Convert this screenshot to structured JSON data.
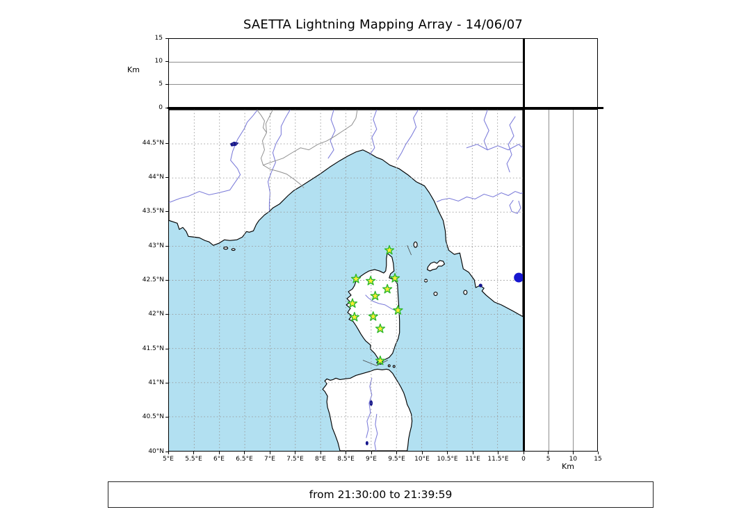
{
  "title": "SAETTA Lightning Mapping Array - 14/06/07",
  "footer": {
    "text": "from 21:30:00 to 21:39:59"
  },
  "axes": {
    "km_label_left": "Km",
    "km_label_bottom": "Km",
    "alt_ticks": [
      {
        "v": 0,
        "label": "0"
      },
      {
        "v": 5,
        "label": "5"
      },
      {
        "v": 10,
        "label": "10"
      },
      {
        "v": 15,
        "label": "15"
      }
    ],
    "lat_ticks": [
      {
        "v": 44.5,
        "label": "44.5°N"
      },
      {
        "v": 44,
        "label": "44°N"
      },
      {
        "v": 43.5,
        "label": "43.5°N"
      },
      {
        "v": 43,
        "label": "43°N"
      },
      {
        "v": 42.5,
        "label": "42.5°N"
      },
      {
        "v": 42,
        "label": "42°N"
      },
      {
        "v": 41.5,
        "label": "41.5°N"
      },
      {
        "v": 41,
        "label": "41°N"
      },
      {
        "v": 40.5,
        "label": "40.5°N"
      },
      {
        "v": 40,
        "label": "40°N"
      }
    ],
    "lon_ticks": [
      {
        "v": 5,
        "label": "5°E"
      },
      {
        "v": 5.5,
        "label": "5.5°E"
      },
      {
        "v": 6,
        "label": "6°E"
      },
      {
        "v": 6.5,
        "label": "6.5°E"
      },
      {
        "v": 7,
        "label": "7°E"
      },
      {
        "v": 7.5,
        "label": "7.5°E"
      },
      {
        "v": 8,
        "label": "8°E"
      },
      {
        "v": 8.5,
        "label": "8.5°E"
      },
      {
        "v": 9,
        "label": "9°E"
      },
      {
        "v": 9.5,
        "label": "9.5°E"
      },
      {
        "v": 10,
        "label": "10°E"
      },
      {
        "v": 10.5,
        "label": "10.5°E"
      },
      {
        "v": 11,
        "label": "11°E"
      },
      {
        "v": 11.5,
        "label": "11.5°E"
      }
    ]
  },
  "chart_data": {
    "type": "scatter",
    "title": "SAETTA Lightning Mapping Array - 14/06/07",
    "time_window": "from 21:30:00 to 21:39:59",
    "panels": [
      {
        "id": "altitude-vs-longitude",
        "position": "top",
        "xlim_deg_e": [
          5,
          12
        ],
        "ylim_km": [
          0,
          15
        ],
        "yticks_km": [
          0,
          5,
          10,
          15
        ],
        "ylabel": "Km",
        "gridlines_km": [
          5,
          10
        ],
        "points": []
      },
      {
        "id": "map",
        "position": "center",
        "lon_range_deg_e": [
          5,
          12
        ],
        "lat_range_deg_n": [
          40,
          45
        ],
        "grid": true,
        "grid_step_deg": 0.5
      },
      {
        "id": "latitude-vs-altitude",
        "position": "right",
        "xlim_km": [
          0,
          15
        ],
        "xticks_km": [
          0,
          5,
          10,
          15
        ],
        "xlabel": "Km",
        "ylim_deg_n": [
          40,
          45
        ],
        "gridlines_km": [
          5,
          10
        ],
        "points": []
      }
    ],
    "series": [
      {
        "name": "lma-stations",
        "marker": "star",
        "fill": "#ffee33",
        "stroke": "#2db82d",
        "points_lon_lat": [
          [
            9.36,
            42.94
          ],
          [
            8.7,
            42.52
          ],
          [
            8.99,
            42.49
          ],
          [
            9.47,
            42.53
          ],
          [
            9.32,
            42.37
          ],
          [
            9.08,
            42.27
          ],
          [
            8.63,
            42.16
          ],
          [
            9.53,
            42.06
          ],
          [
            9.04,
            41.97
          ],
          [
            8.67,
            41.96
          ],
          [
            9.18,
            41.79
          ],
          [
            9.18,
            41.32
          ]
        ]
      },
      {
        "name": "lightning-sources",
        "marker": "circle",
        "fill": "#1616cf",
        "points_lon_lat": [
          [
            11.92,
            42.54
          ]
        ]
      }
    ],
    "legend": "none"
  },
  "colors": {
    "sea": "#b2e0f1",
    "land": "#ffffff",
    "coast": "#000000",
    "river": "#7a7ad9",
    "admin_border": "#8f8f8f",
    "grid": "#999999",
    "lake": "#14148c",
    "station_fill": "#ffee33",
    "station_stroke": "#2db82d",
    "source_dot": "#1616cf"
  }
}
